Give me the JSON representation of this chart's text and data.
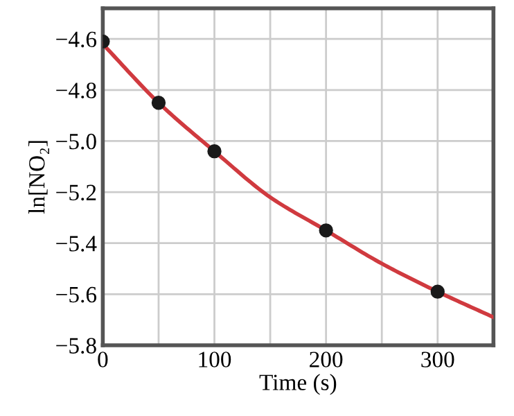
{
  "chart_data": {
    "type": "scatter",
    "xlabel": "Time (s)",
    "ylabel": "ln[NO₂]",
    "series": [
      {
        "type": "line",
        "color": "#d03a3f",
        "x": [
          0,
          50,
          100,
          150,
          200,
          250,
          300,
          350
        ],
        "values": [
          -4.62,
          -4.85,
          -5.04,
          -5.22,
          -5.35,
          -5.48,
          -5.59,
          -5.69
        ],
        "marker": "none"
      },
      {
        "color": "#1a1a1a",
        "x": [
          0,
          50,
          100,
          200,
          300
        ],
        "values": [
          -4.61,
          -4.85,
          -5.04,
          -5.35,
          -5.59
        ],
        "marker": "circle"
      }
    ],
    "xlim": [
      0,
      350
    ],
    "ylim": [
      -5.8,
      -4.48
    ],
    "xticks": [
      0,
      {
        "value": 50,
        "label": null
      },
      100,
      {
        "value": 150,
        "label": null
      },
      200,
      {
        "value": 250,
        "label": null
      },
      300
    ],
    "yticks": [
      {
        "value": -5.8,
        "label": "−5.8"
      },
      {
        "value": -5.6,
        "label": "−5.6"
      },
      {
        "value": -5.4,
        "label": "−5.4"
      },
      {
        "value": -5.2,
        "label": "−5.2"
      },
      {
        "value": -5.0,
        "label": "−5.0"
      },
      {
        "value": -4.8,
        "label": "−4.8"
      },
      {
        "value": -4.6,
        "label": "−4.6"
      }
    ],
    "grid": true
  }
}
